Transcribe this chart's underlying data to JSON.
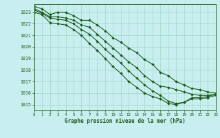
{
  "xlabel": "Graphe pression niveau de la mer (hPa)",
  "xlim": [
    0,
    23
  ],
  "ylim": [
    1014.5,
    1023.7
  ],
  "yticks": [
    1015,
    1016,
    1017,
    1018,
    1019,
    1020,
    1021,
    1022,
    1023
  ],
  "xticks": [
    0,
    1,
    2,
    3,
    4,
    5,
    6,
    7,
    8,
    9,
    10,
    11,
    12,
    13,
    14,
    15,
    16,
    17,
    18,
    19,
    20,
    21,
    22,
    23
  ],
  "bg_color": "#c8eef0",
  "grid_color": "#a0d8c8",
  "line_color": "#1a5c1a",
  "line_width": 0.8,
  "marker": "D",
  "marker_size": 2.0,
  "lines": [
    [
      1023.5,
      1023.3,
      1022.8,
      1023.0,
      1023.0,
      1022.7,
      1022.3,
      1022.3,
      1021.9,
      1021.4,
      1020.8,
      1020.4,
      1019.9,
      1019.5,
      1018.9,
      1018.5,
      1017.8,
      1017.5,
      1017.0,
      1016.7,
      1016.4,
      1016.3,
      1016.1,
      1016.0
    ],
    [
      1023.3,
      1023.0,
      1022.6,
      1022.6,
      1022.5,
      1022.3,
      1021.9,
      1021.7,
      1021.1,
      1020.5,
      1019.9,
      1019.3,
      1018.7,
      1018.2,
      1017.5,
      1017.0,
      1016.6,
      1016.5,
      1016.3,
      1016.1,
      1015.9,
      1015.8,
      1015.8,
      1015.9
    ],
    [
      1023.2,
      1022.9,
      1022.5,
      1022.4,
      1022.3,
      1022.0,
      1021.5,
      1021.1,
      1020.5,
      1019.8,
      1019.2,
      1018.6,
      1017.9,
      1017.3,
      1016.7,
      1016.2,
      1015.8,
      1015.3,
      1015.1,
      1015.2,
      1015.6,
      1015.6,
      1015.7,
      1015.9
    ],
    [
      1023.0,
      1022.8,
      1022.1,
      1022.0,
      1021.9,
      1021.5,
      1021.0,
      1020.3,
      1019.7,
      1019.0,
      1018.3,
      1017.7,
      1017.0,
      1016.5,
      1016.0,
      1015.7,
      1015.5,
      1015.1,
      1015.0,
      1015.2,
      1015.5,
      1015.5,
      1015.6,
      1015.8
    ]
  ]
}
